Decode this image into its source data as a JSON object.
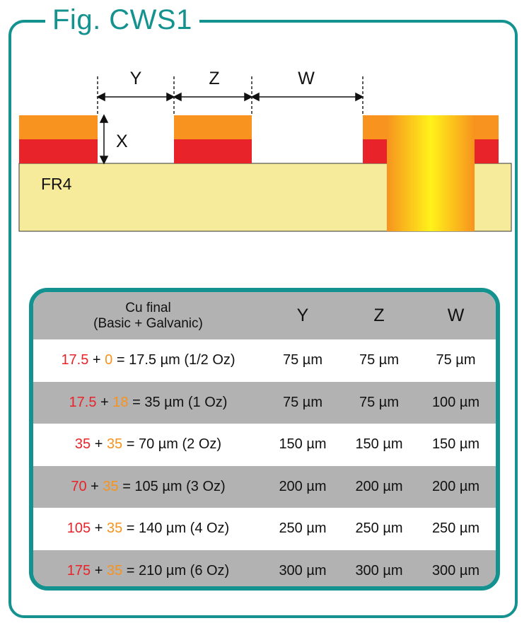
{
  "figure": {
    "title": "Fig. CWS1",
    "labels": {
      "y": "Y",
      "z": "Z",
      "w": "W",
      "x": "X",
      "substrate": "FR4"
    }
  },
  "colors": {
    "accent": "#14928f",
    "substrate": "#f6eb9b",
    "base_copper": "#e8232a",
    "galvanic_copper": "#f7931e",
    "header_gray": "#b2b2b2"
  },
  "table": {
    "header": {
      "cu_line1": "Cu final",
      "cu_line2": "(Basic + Galvanic)",
      "y": "Y",
      "z": "Z",
      "w": "W"
    },
    "rows": [
      {
        "basic": "17.5",
        "plus": " + ",
        "galvanic": "0",
        "result": " = 17.5 µm (1/2 Oz)",
        "y": "75 µm",
        "z": "75 µm",
        "w": "75 µm"
      },
      {
        "basic": "17.5",
        "plus": " + ",
        "galvanic": "18",
        "result": " = 35 µm (1 Oz)",
        "y": "75 µm",
        "z": "75 µm",
        "w": "100 µm"
      },
      {
        "basic": "35",
        "plus": " + ",
        "galvanic": "35",
        "result": " = 70 µm (2 Oz)",
        "y": "150 µm",
        "z": "150 µm",
        "w": "150 µm"
      },
      {
        "basic": "70",
        "plus": " + ",
        "galvanic": "35",
        "result": " = 105 µm (3 Oz)",
        "y": "200 µm",
        "z": "200 µm",
        "w": "200 µm"
      },
      {
        "basic": "105",
        "plus": " + ",
        "galvanic": "35",
        "result": " = 140 µm (4 Oz)",
        "y": "250 µm",
        "z": "250 µm",
        "w": "250 µm"
      },
      {
        "basic": "175",
        "plus": " + ",
        "galvanic": "35",
        "result": " = 210 µm (6 Oz)",
        "y": "300 µm",
        "z": "300 µm",
        "w": "300 µm"
      }
    ]
  }
}
